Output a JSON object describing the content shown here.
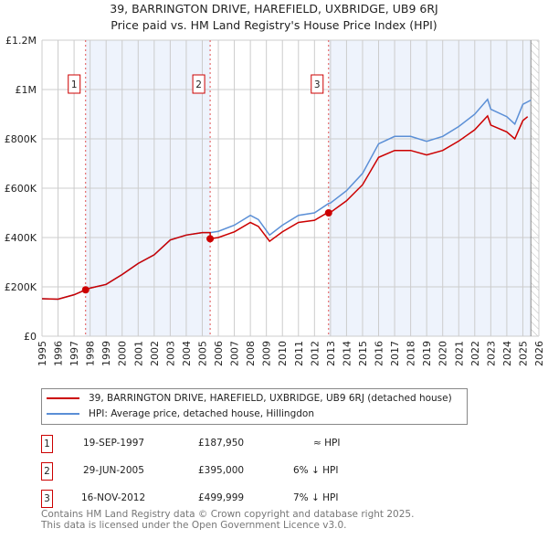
{
  "title": "39, BARRINGTON DRIVE, HAREFIELD, UXBRIDGE, UB9 6RJ",
  "subtitle": "Price paid vs. HM Land Registry's House Price Index (HPI)",
  "chart_data": {
    "type": "line",
    "ylim": [
      0,
      1200000
    ],
    "xlim": [
      1995,
      2026
    ],
    "y_ticks": [
      {
        "v": 0,
        "label": "£0"
      },
      {
        "v": 200000,
        "label": "£200K"
      },
      {
        "v": 400000,
        "label": "£400K"
      },
      {
        "v": 600000,
        "label": "£600K"
      },
      {
        "v": 800000,
        "label": "£800K"
      },
      {
        "v": 1000000,
        "label": "£1M"
      },
      {
        "v": 1200000,
        "label": "£1.2M"
      }
    ],
    "x_ticks": [
      "1995",
      "1996",
      "1997",
      "1998",
      "1999",
      "2000",
      "2001",
      "2002",
      "2003",
      "2004",
      "2005",
      "2006",
      "2007",
      "2008",
      "2009",
      "2010",
      "2011",
      "2012",
      "2013",
      "2014",
      "2015",
      "2016",
      "2017",
      "2018",
      "2019",
      "2020",
      "2021",
      "2022",
      "2023",
      "2024",
      "2025",
      "2026"
    ],
    "series": [
      {
        "name": "39, BARRINGTON DRIVE, HAREFIELD, UXBRIDGE, UB9 6RJ (detached house)",
        "color": "#cc0000",
        "x": [
          1995,
          1996,
          1997,
          1997.72,
          1998,
          1999,
          2000,
          2001,
          2002,
          2003,
          2004,
          2005,
          2005.49,
          2005.5,
          2006,
          2007,
          2008,
          2008.5,
          2009.2,
          2010,
          2011,
          2012,
          2012.87,
          2012.88,
          2013,
          2014,
          2015,
          2016,
          2017,
          2018,
          2019,
          2020,
          2021,
          2022,
          2022.8,
          2023,
          2024,
          2024.5,
          2025,
          2025.3
        ],
        "y": [
          152000,
          150000,
          168000,
          187950,
          195000,
          210000,
          250000,
          295000,
          330000,
          390000,
          410000,
          420000,
          420000,
          395000,
          400000,
          423000,
          461000,
          445000,
          385000,
          423000,
          461000,
          470000,
          503000,
          499999,
          502000,
          549000,
          614000,
          725000,
          753000,
          753000,
          735000,
          753000,
          791000,
          837000,
          893000,
          856000,
          828000,
          800000,
          874000,
          890000
        ]
      },
      {
        "name": "HPI: Average price, detached house, Hillingdon",
        "color": "#5b8fd6",
        "x": [
          1995,
          1996,
          1997,
          1997.72,
          1998,
          1999,
          2000,
          2001,
          2002,
          2003,
          2004,
          2005,
          2005.5,
          2006,
          2007,
          2008,
          2008.5,
          2009.2,
          2010,
          2011,
          2012,
          2012.88,
          2013,
          2014,
          2015,
          2016,
          2017,
          2018,
          2019,
          2020,
          2021,
          2022,
          2022.8,
          2023,
          2024,
          2024.5,
          2025,
          2025.5
        ],
        "y": [
          152000,
          150000,
          168000,
          188000,
          195000,
          210000,
          250000,
          295000,
          330000,
          390000,
          410000,
          420000,
          420000,
          425000,
          450000,
          490000,
          473000,
          410000,
          450000,
          490000,
          500000,
          538000,
          540000,
          590000,
          660000,
          780000,
          810000,
          810000,
          790000,
          810000,
          850000,
          900000,
          960000,
          920000,
          890000,
          860000,
          940000,
          957000
        ]
      }
    ],
    "annotations": [
      {
        "label": "1",
        "x": 1997.72
      },
      {
        "label": "2",
        "x": 2005.49
      },
      {
        "label": "3",
        "x": 2012.88
      }
    ]
  },
  "legend": {
    "red": "39, BARRINGTON DRIVE, HAREFIELD, UXBRIDGE, UB9 6RJ (detached house)",
    "blue": "HPI: Average price, detached house, Hillingdon"
  },
  "sales": [
    {
      "n": "1",
      "date": "19-SEP-1997",
      "price": "£187,950",
      "rel": "≈ HPI"
    },
    {
      "n": "2",
      "date": "29-JUN-2005",
      "price": "£395,000",
      "rel": "6% ↓ HPI"
    },
    {
      "n": "3",
      "date": "16-NOV-2012",
      "price": "£499,999",
      "rel": "7% ↓ HPI"
    }
  ],
  "footer": [
    "Contains HM Land Registry data © Crown copyright and database right 2025.",
    "This data is licensed under the Open Government Licence v3.0."
  ]
}
